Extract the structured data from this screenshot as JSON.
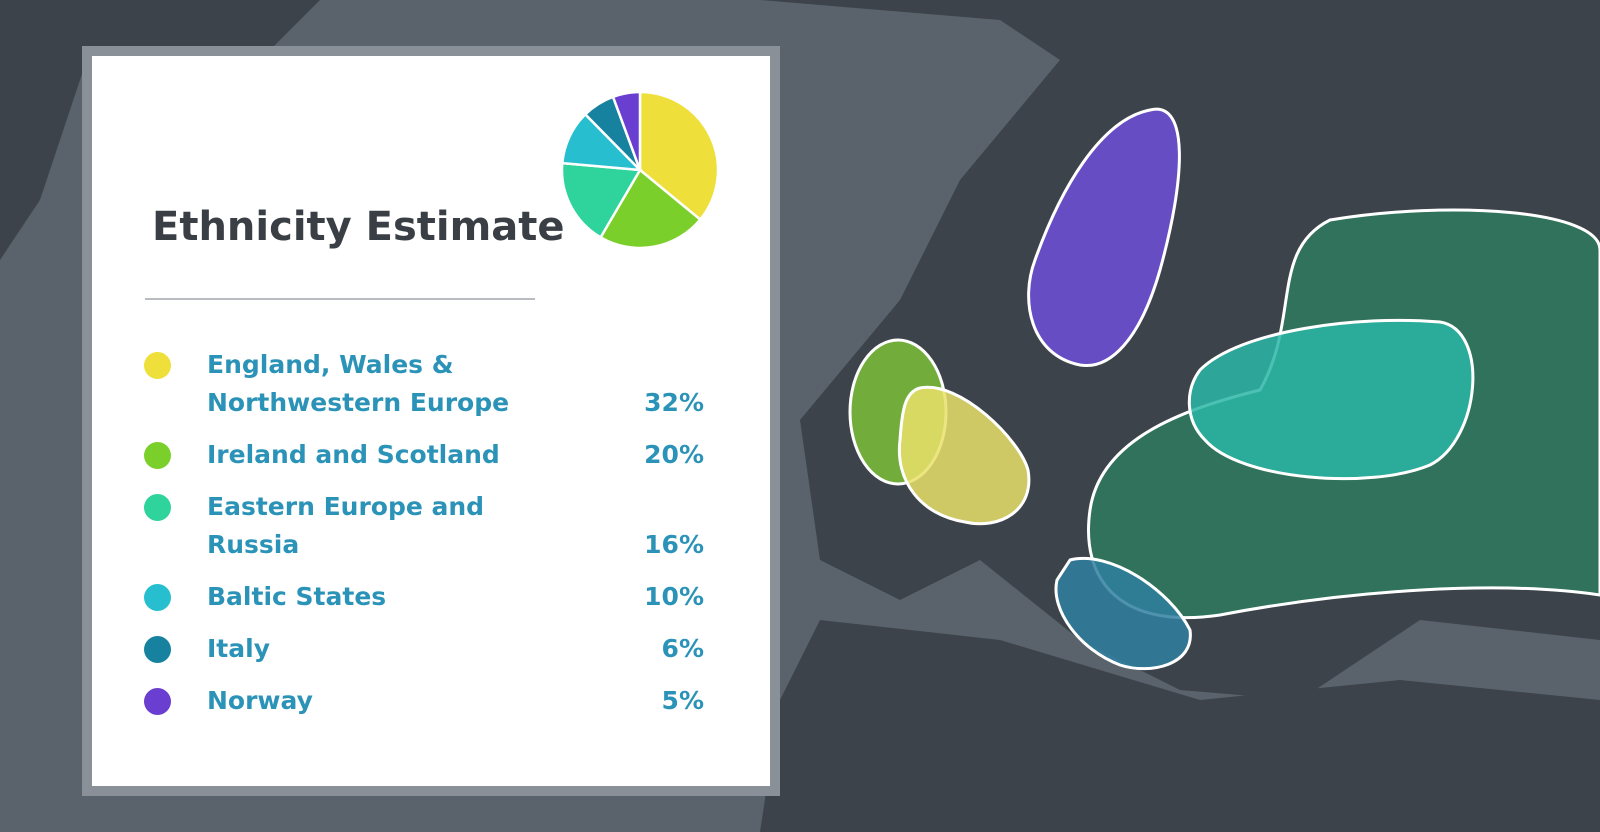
{
  "chart_data": {
    "type": "pie",
    "title": "Ethnicity Estimate",
    "categories": [
      "England, Wales & Northwestern Europe",
      "Ireland and Scotland",
      "Eastern Europe and Russia",
      "Baltic States",
      "Italy",
      "Norway"
    ],
    "values": [
      32,
      20,
      16,
      10,
      6,
      5
    ],
    "value_labels": [
      "32%",
      "20%",
      "16%",
      "10%",
      "6%",
      "5%"
    ],
    "colors": [
      "#efdf3a",
      "#7bcf2a",
      "#2fd39c",
      "#27bfd0",
      "#17829f",
      "#6a3ed0"
    ]
  }
}
